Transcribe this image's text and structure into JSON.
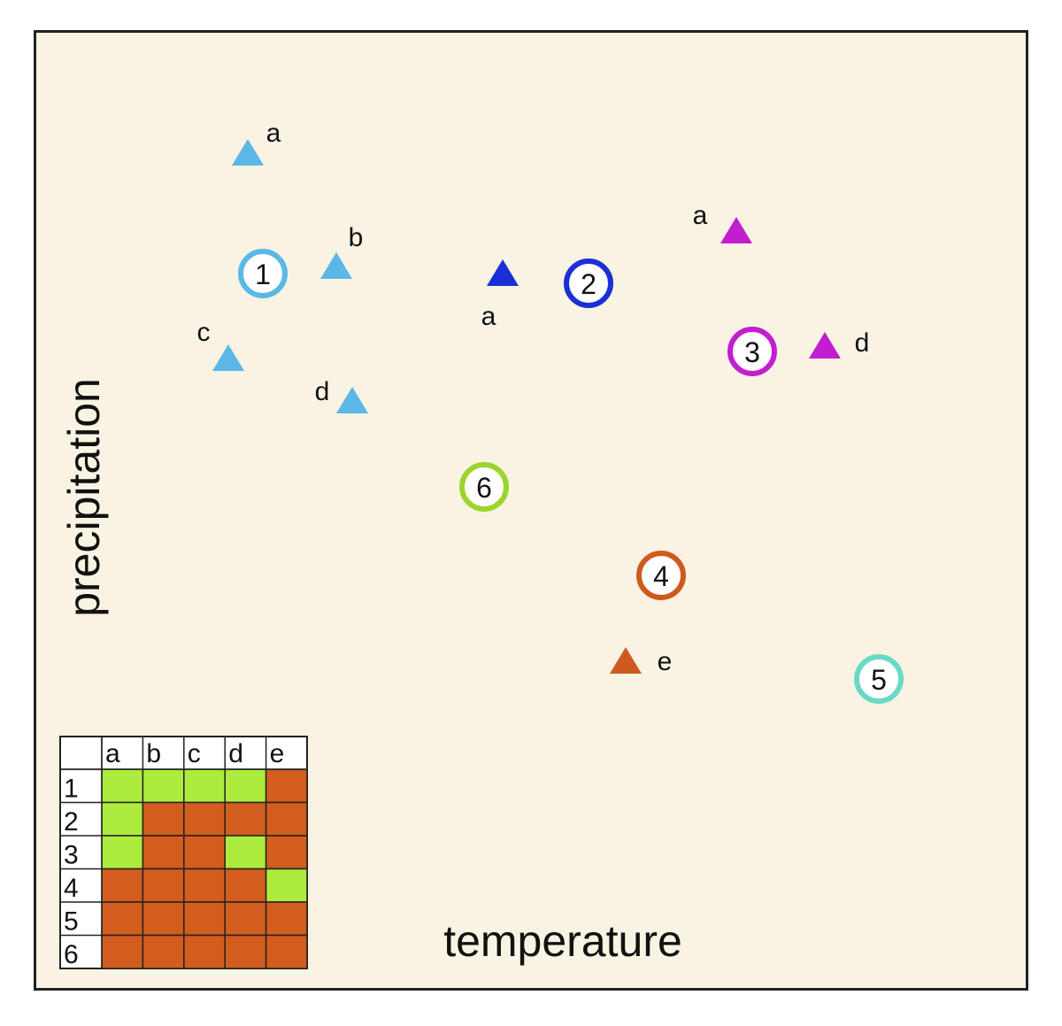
{
  "axes": {
    "x_label": "temperature",
    "y_label": "precipitation"
  },
  "colors": {
    "background": "#f8f3e2",
    "border": "#222222",
    "group_1": "#5bb8e6",
    "group_2": "#1a2fd6",
    "group_3": "#c21ed0",
    "group_4": "#cf5a1f",
    "group_5": "#6ad9c6",
    "group_6": "#9ed42e",
    "cell_match": "#adec3c",
    "cell_no_match": "#d35c1f"
  },
  "sites": [
    {
      "label": "1",
      "color_key": "group_1",
      "icon": "circle-marker"
    },
    {
      "label": "2",
      "color_key": "group_2",
      "icon": "circle-marker"
    },
    {
      "label": "3",
      "color_key": "group_3",
      "icon": "circle-marker"
    },
    {
      "label": "4",
      "color_key": "group_4",
      "icon": "circle-marker"
    },
    {
      "label": "5",
      "color_key": "group_5",
      "icon": "circle-marker"
    },
    {
      "label": "6",
      "color_key": "group_6",
      "icon": "circle-marker"
    }
  ],
  "species": [
    {
      "label": "a",
      "color_key": "group_1",
      "icon": "triangle-marker"
    },
    {
      "label": "b",
      "color_key": "group_1",
      "icon": "triangle-marker"
    },
    {
      "label": "c",
      "color_key": "group_1",
      "icon": "triangle-marker"
    },
    {
      "label": "d",
      "color_key": "group_1",
      "icon": "triangle-marker"
    },
    {
      "label": "a",
      "color_key": "group_2",
      "icon": "triangle-marker"
    },
    {
      "label": "a",
      "color_key": "group_3",
      "icon": "triangle-marker"
    },
    {
      "label": "d",
      "color_key": "group_3",
      "icon": "triangle-marker"
    },
    {
      "label": "e",
      "color_key": "group_4",
      "icon": "triangle-marker"
    }
  ],
  "matrix": {
    "columns": [
      "a",
      "b",
      "c",
      "d",
      "e"
    ],
    "rows": [
      {
        "label": "1",
        "cells": [
          1,
          1,
          1,
          1,
          0
        ]
      },
      {
        "label": "2",
        "cells": [
          1,
          0,
          0,
          0,
          0
        ]
      },
      {
        "label": "3",
        "cells": [
          1,
          0,
          0,
          1,
          0
        ]
      },
      {
        "label": "4",
        "cells": [
          0,
          0,
          0,
          0,
          1
        ]
      },
      {
        "label": "5",
        "cells": [
          0,
          0,
          0,
          0,
          0
        ]
      },
      {
        "label": "6",
        "cells": [
          0,
          0,
          0,
          0,
          0
        ]
      }
    ]
  }
}
